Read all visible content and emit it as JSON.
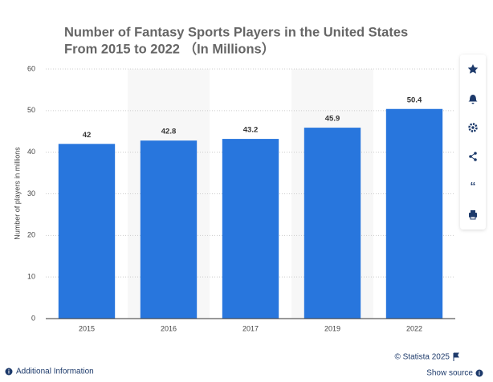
{
  "chart_data": {
    "type": "bar",
    "title": [
      "Number of Fantasy Sports Players in the United States",
      "From 2015 to 2022 （In Millions）"
    ],
    "y_label": "Number of players in millions",
    "categories": [
      "2015",
      "2016",
      "2017",
      "2019",
      "2022"
    ],
    "values": [
      42,
      42.8,
      43.2,
      45.9,
      50.4
    ],
    "color": "#2876dd",
    "ylim": [
      0,
      60
    ],
    "yticks": [
      0,
      10,
      20,
      30,
      40,
      50,
      60
    ],
    "grid": true
  },
  "footer": {
    "copyright": "© Statista 2025",
    "additional": "Additional Information",
    "source": "Show source"
  }
}
